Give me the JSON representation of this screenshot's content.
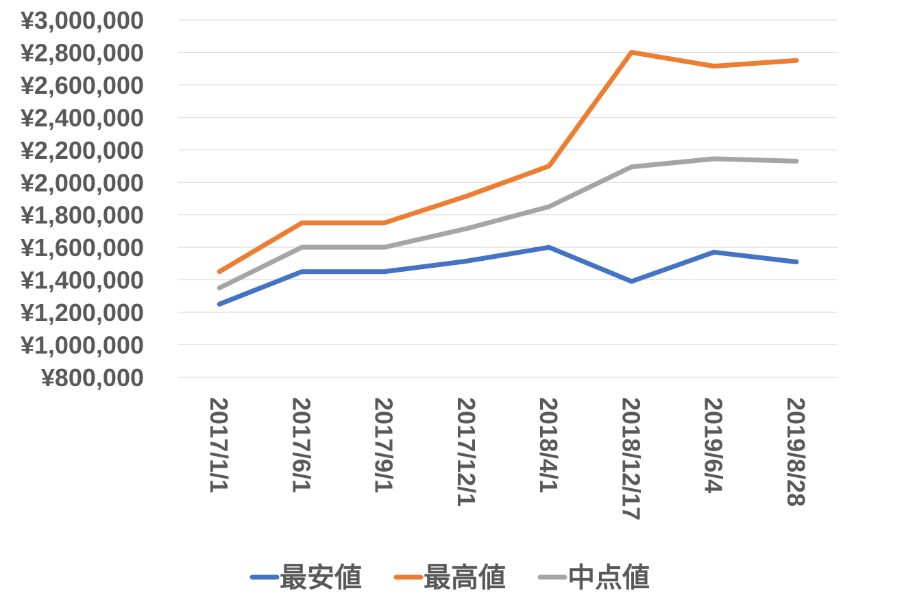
{
  "chart_data": {
    "type": "line",
    "title": "",
    "xlabel": "",
    "ylabel": "",
    "categories": [
      "2017/1/1",
      "2017/6/1",
      "2017/9/1",
      "2017/12/1",
      "2018/4/1",
      "2018/12/17",
      "2019/6/4",
      "2019/8/28"
    ],
    "ylim": [
      800000,
      3000000
    ],
    "ytick_values": [
      800000,
      1000000,
      1200000,
      1400000,
      1600000,
      1800000,
      2000000,
      2200000,
      2400000,
      2600000,
      2800000,
      3000000
    ],
    "ytick_labels": [
      "¥800,000",
      "¥1,000,000",
      "¥1,200,000",
      "¥1,400,000",
      "¥1,600,000",
      "¥1,800,000",
      "¥2,000,000",
      "¥2,200,000",
      "¥2,400,000",
      "¥2,600,000",
      "¥2,800,000",
      "¥3,000,000"
    ],
    "grid": true,
    "legend_position": "bottom",
    "series": [
      {
        "name": "最安値",
        "color": "#4472c4",
        "values": [
          1250000,
          1450000,
          1450000,
          1515000,
          1600000,
          1390000,
          1570000,
          1510000
        ]
      },
      {
        "name": "最高値",
        "color": "#ed7d31",
        "values": [
          1450000,
          1750000,
          1750000,
          1915000,
          2100000,
          2800000,
          2715000,
          2750000
        ]
      },
      {
        "name": "中点値",
        "color": "#a5a5a5",
        "values": [
          1350000,
          1600000,
          1600000,
          1715000,
          1850000,
          2095000,
          2145000,
          2130000
        ]
      }
    ]
  }
}
